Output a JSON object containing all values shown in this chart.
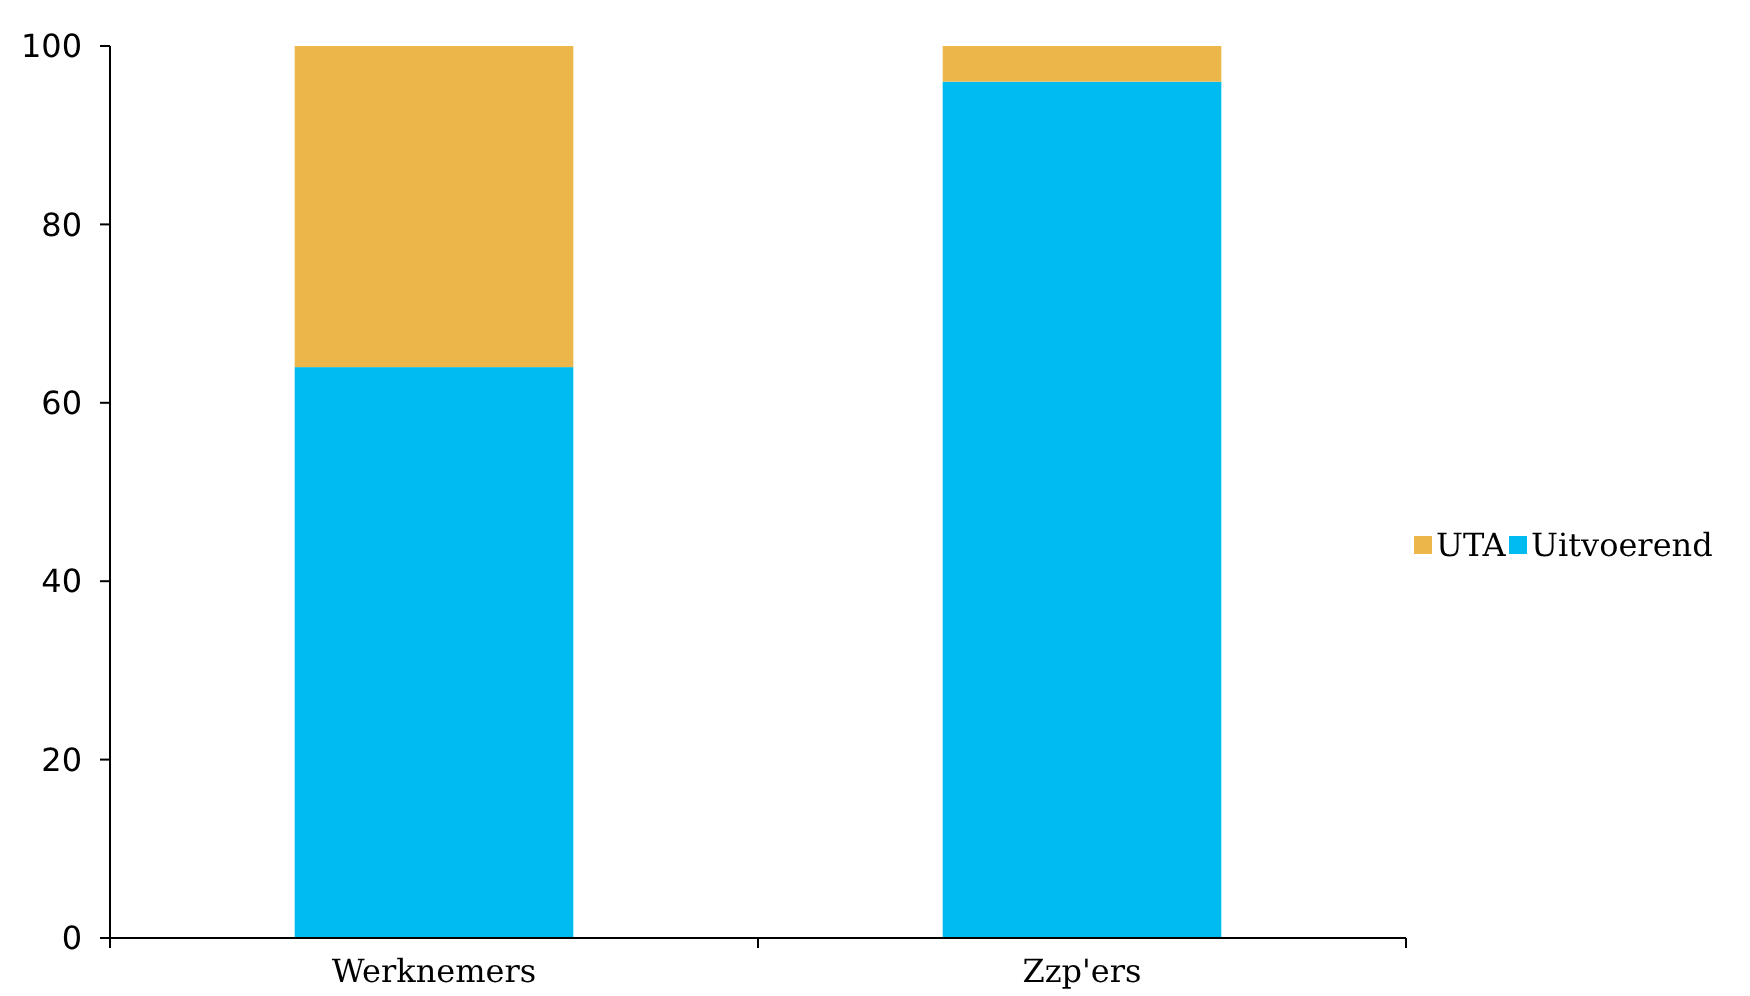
{
  "chart_data": {
    "type": "bar",
    "stacked": true,
    "categories": [
      "Werknemers",
      "Zzp'ers"
    ],
    "series": [
      {
        "name": "Uitvoerend",
        "color": "#00bbf0",
        "values": [
          64,
          96
        ]
      },
      {
        "name": "UTA",
        "color": "#ecb64b",
        "values": [
          36,
          4
        ]
      }
    ],
    "ylim": [
      0,
      100
    ],
    "yticks": [
      0,
      20,
      40,
      60,
      80,
      100
    ],
    "grid": false,
    "legend": "right"
  }
}
